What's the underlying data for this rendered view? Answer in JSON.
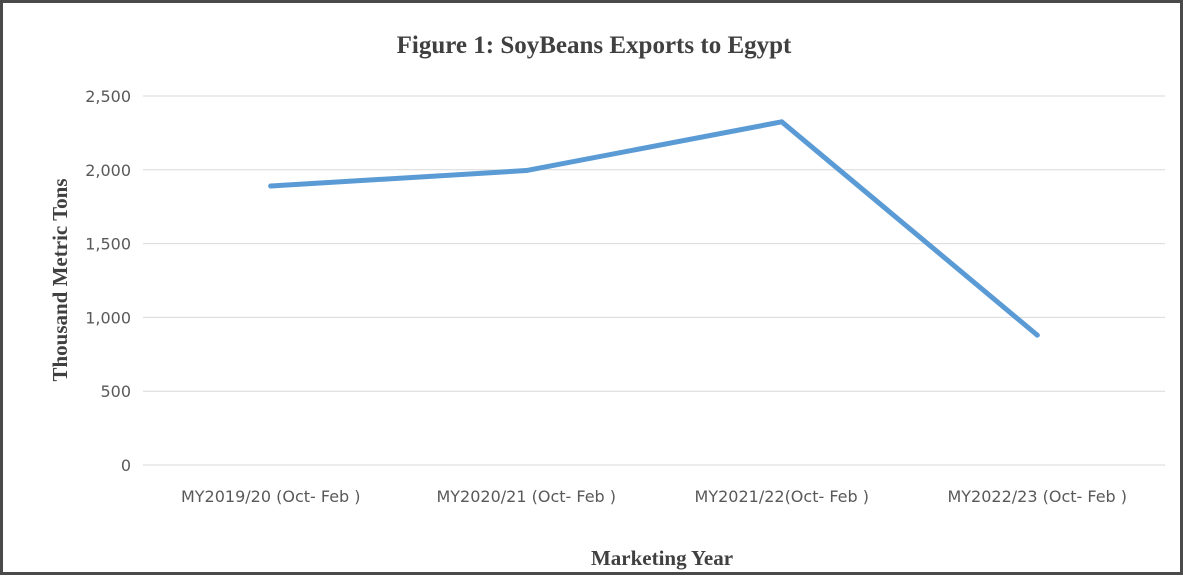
{
  "chart_data": {
    "type": "line",
    "title": "Figure 1: SoyBeans Exports to Egypt",
    "xlabel": "Marketing Year",
    "ylabel": "Thousand  Metric Tons",
    "categories": [
      "MY2019/20 (Oct- Feb )",
      "MY2020/21 (Oct- Feb )",
      "MY2021/22(Oct- Feb )",
      "MY2022/23 (Oct- Feb )"
    ],
    "series": [
      {
        "values": [
          1890,
          1995,
          2325,
          880
        ],
        "color": "#5b9bd5"
      }
    ],
    "ylim": [
      0,
      2500
    ],
    "yticks": [
      "0",
      "500",
      "1,000",
      "1,500",
      "2,000",
      "2,500"
    ],
    "grid": true,
    "legend": "none"
  }
}
